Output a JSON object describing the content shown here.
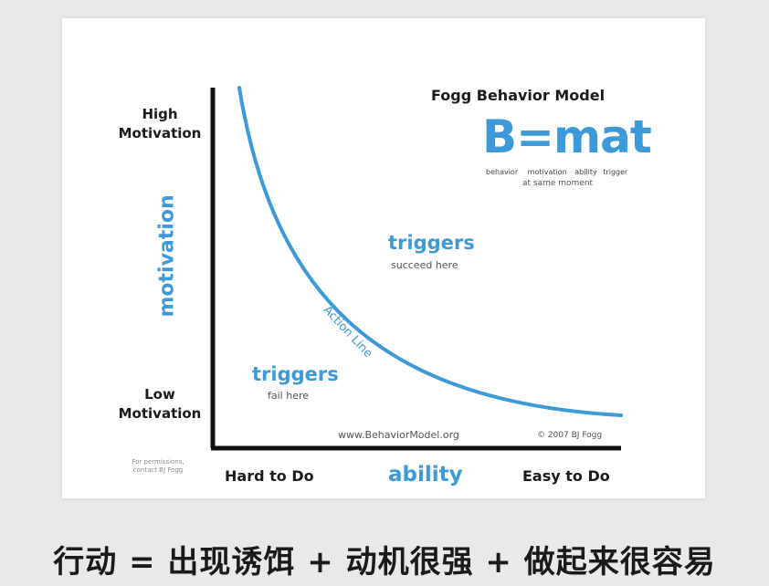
{
  "model": {
    "title": "Fogg Behavior Model",
    "formula": "B=mat",
    "formula_terms": [
      "behavior",
      "motivation",
      "ability",
      "trigger"
    ],
    "formula_note": "at same moment"
  },
  "axes": {
    "y_high": [
      "High",
      "Motivation"
    ],
    "y_low": [
      "Low",
      "Motivation"
    ],
    "y_label": "motivation",
    "x_left": "Hard to Do",
    "x_label": "ability",
    "x_right": "Easy to Do"
  },
  "regions": {
    "success_title": "triggers",
    "success_sub": "succeed here",
    "fail_title": "triggers",
    "fail_sub": "fail here",
    "curve_label": "Action Line"
  },
  "footer": {
    "website": "www.BehaviorModel.org",
    "copyright": "© 2007 BJ Fogg",
    "permissions": [
      "For permissions,",
      "contact BJ Fogg"
    ]
  },
  "colors": {
    "accent": "#3d9ad8",
    "text": "#1b1b1b",
    "background": "#e9e9e9"
  },
  "caption": "行动 = 出现诱饵 + 动机很强 + 做起来很容易"
}
